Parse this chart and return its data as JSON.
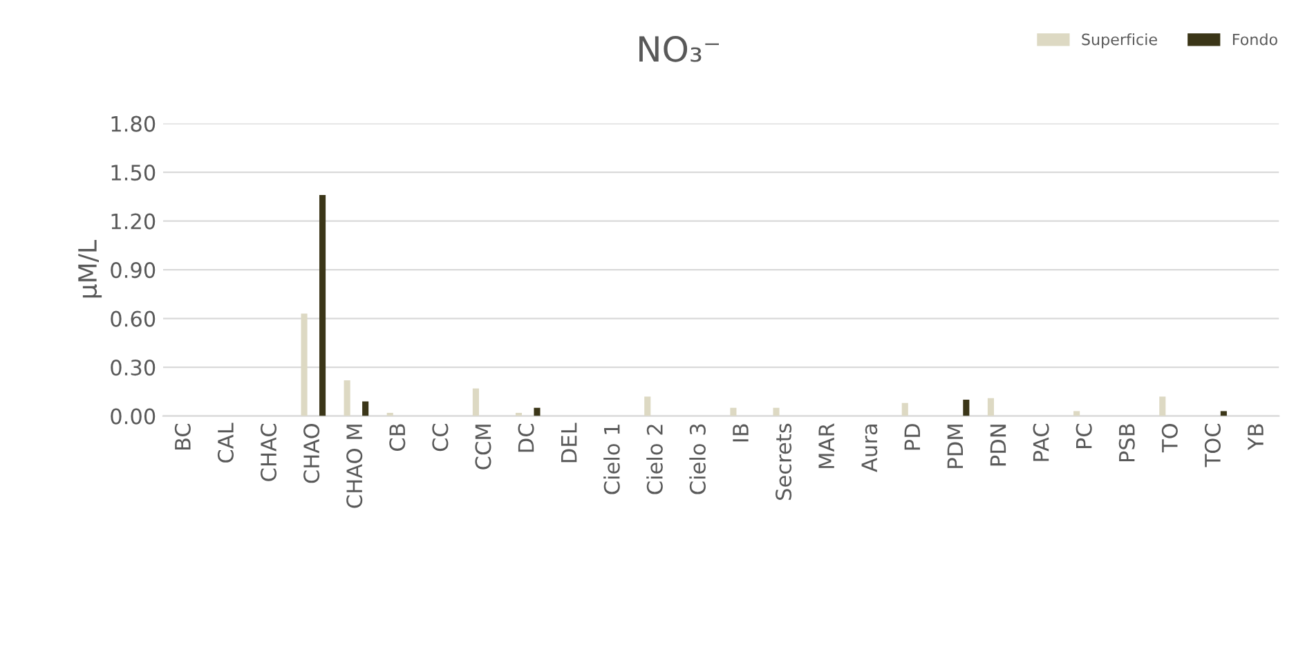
{
  "chart_data": {
    "type": "bar",
    "title": "NO₃⁻",
    "ylabel": "µM/L",
    "categories": [
      "BC",
      "CAL",
      "CHAC",
      "CHAO",
      "CHAO M",
      "CB",
      "CC",
      "CCM",
      "DC",
      "DEL",
      "Cielo 1",
      "Cielo 2",
      "Cielo 3",
      "IB",
      "Secrets",
      "MAR",
      "Aura",
      "PD",
      "PDM",
      "PDN",
      "PAC",
      "PC",
      "PSB",
      "TO",
      "TOC",
      "YB"
    ],
    "series": [
      {
        "name": "Superficie",
        "color": "#ddd9c3",
        "values": [
          0,
          0,
          0,
          0.63,
          0.22,
          0.02,
          0,
          0.17,
          0.02,
          0,
          0,
          0.12,
          0,
          0.05,
          0.05,
          0,
          0,
          0.08,
          0,
          0.11,
          0,
          0.03,
          0,
          0.12,
          0,
          0
        ]
      },
      {
        "name": "Fondo",
        "color": "#3b3618",
        "values": [
          0,
          0,
          0,
          1.36,
          0.09,
          0,
          0,
          0,
          0.05,
          0,
          0,
          0,
          0,
          0,
          0,
          0,
          0,
          0,
          0.1,
          0,
          0,
          0,
          0,
          0,
          0.03,
          0
        ]
      }
    ],
    "ylim": [
      0,
      1.8
    ],
    "yticks": [
      {
        "value": 0,
        "label": "0.00"
      },
      {
        "value": 0.3,
        "label": "0.30"
      },
      {
        "value": 0.6,
        "label": "0.60"
      },
      {
        "value": 0.9,
        "label": "0.90"
      },
      {
        "value": 1.2,
        "label": "1.20"
      },
      {
        "value": 1.5,
        "label": "1.50"
      },
      {
        "value": 1.8,
        "label": "1.80"
      }
    ],
    "grid": "y",
    "legend": "top right"
  }
}
